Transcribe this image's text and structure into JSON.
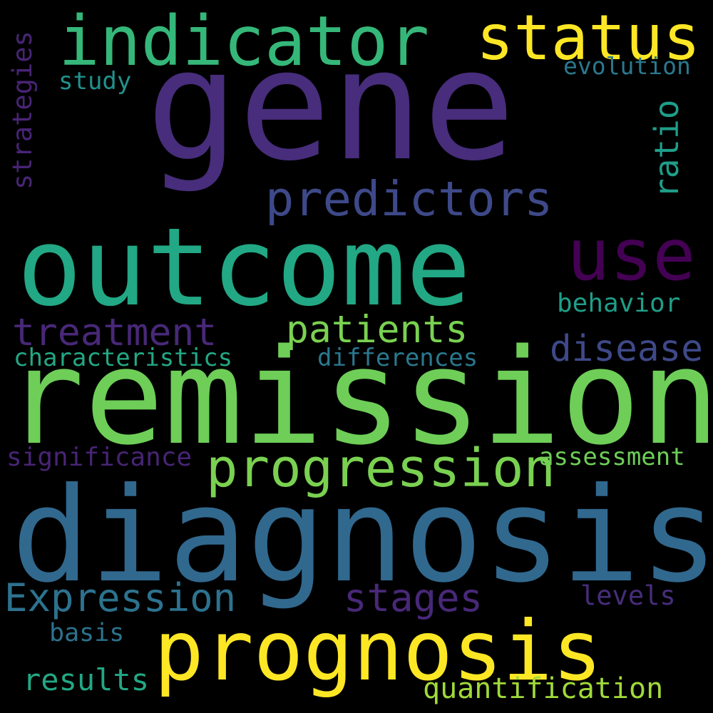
{
  "words": {
    "gene": {
      "text": "gene",
      "color": "#472d7b"
    },
    "indicator": {
      "text": "indicator",
      "color": "#35b779"
    },
    "status": {
      "text": "status",
      "color": "#fde725"
    },
    "strategies": {
      "text": "strategies",
      "color": "#482475"
    },
    "study": {
      "text": "study",
      "color": "#21918c"
    },
    "evolution": {
      "text": "evolution",
      "color": "#2a788e"
    },
    "ratio": {
      "text": "ratio",
      "color": "#1f9e89"
    },
    "predictors": {
      "text": "predictors",
      "color": "#3e4989"
    },
    "outcome": {
      "text": "outcome",
      "color": "#22a884"
    },
    "use": {
      "text": "use",
      "color": "#440154"
    },
    "behavior": {
      "text": "behavior",
      "color": "#1f9e89"
    },
    "treatment": {
      "text": "treatment",
      "color": "#482878"
    },
    "patients": {
      "text": "patients",
      "color": "#7ad151"
    },
    "disease": {
      "text": "disease",
      "color": "#3e4989"
    },
    "characteristics": {
      "text": "characteristics",
      "color": "#22a884"
    },
    "differences": {
      "text": "differences",
      "color": "#2a788e"
    },
    "remission": {
      "text": "remission",
      "color": "#6ece58"
    },
    "significance": {
      "text": "significance",
      "color": "#482475"
    },
    "progression": {
      "text": "progression",
      "color": "#7ad151"
    },
    "assessment": {
      "text": "assessment",
      "color": "#6ece58"
    },
    "diagnosis": {
      "text": "diagnosis",
      "color": "#31688e"
    },
    "expression": {
      "text": "Expression",
      "color": "#2c728e"
    },
    "stages": {
      "text": "stages",
      "color": "#482878"
    },
    "levels": {
      "text": "levels",
      "color": "#472d7b"
    },
    "basis": {
      "text": "basis",
      "color": "#2c728e"
    },
    "prognosis": {
      "text": "prognosis",
      "color": "#fde725"
    },
    "results": {
      "text": "results",
      "color": "#22a884"
    },
    "quantification": {
      "text": "quantification",
      "color": "#a0da39"
    }
  }
}
